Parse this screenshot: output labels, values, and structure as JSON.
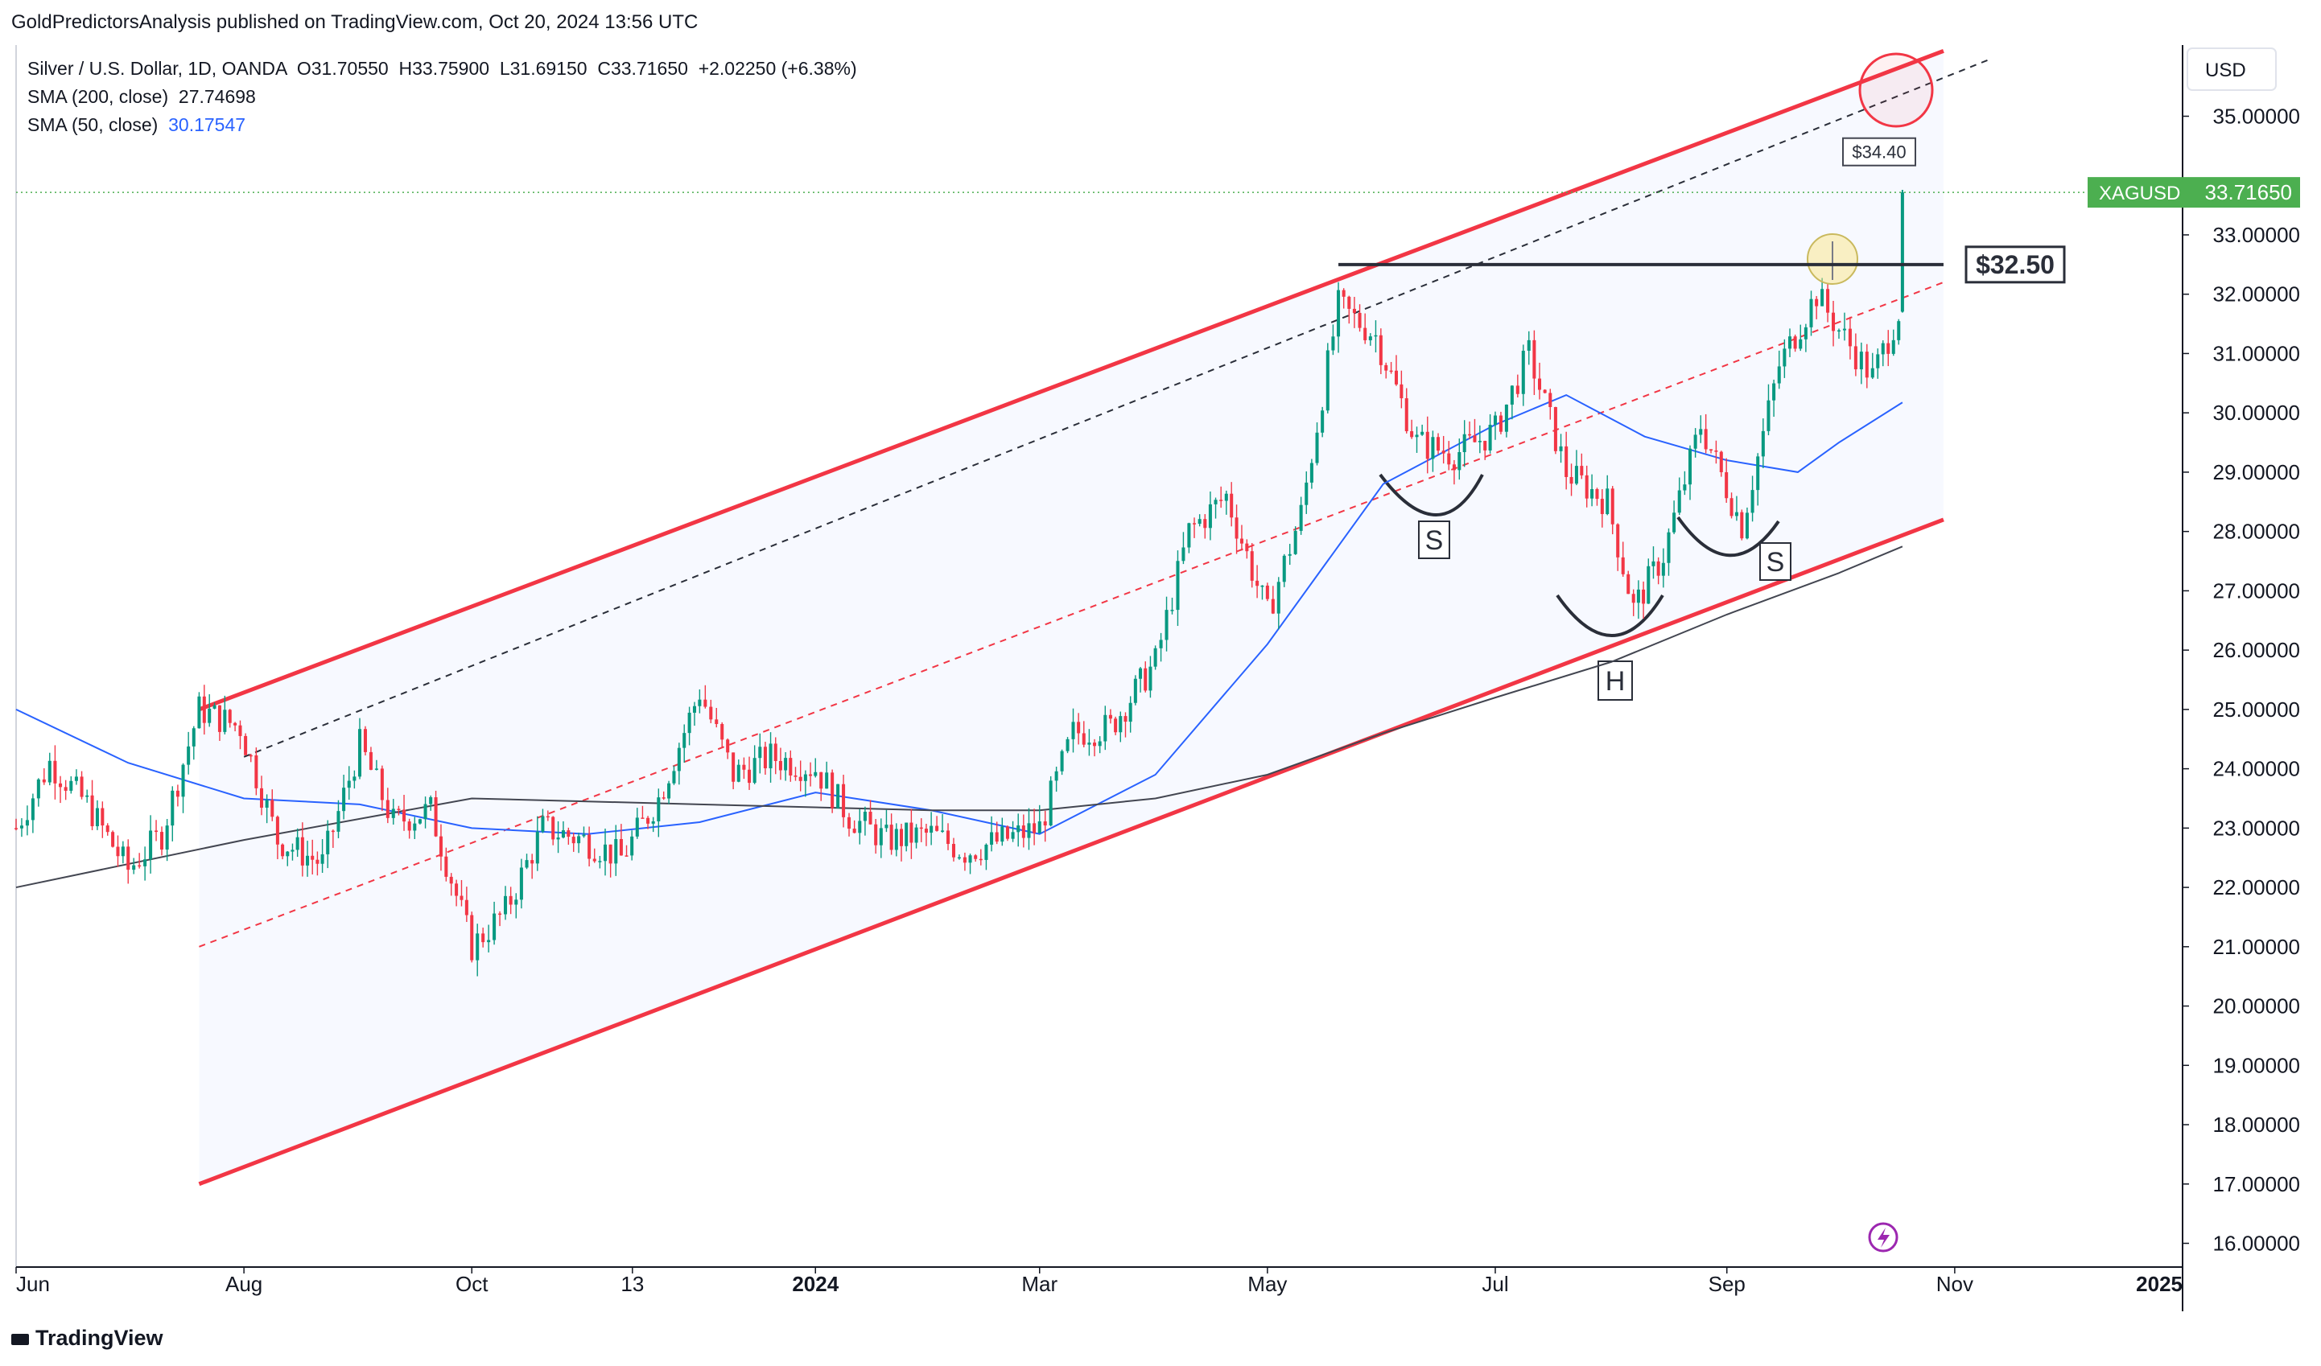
{
  "header": {
    "credit": "GoldPredictorsAnalysis published on TradingView.com, Oct 20, 2024 13:56 UTC"
  },
  "legend": {
    "symbol_line": "Silver / U.S. Dollar, 1D, OANDA",
    "open_label": "O",
    "open": "31.70550",
    "high_label": "H",
    "high": "33.75900",
    "low_label": "L",
    "low": "31.69150",
    "close_label": "C",
    "close": "33.71650",
    "change": "+2.02250 (+6.38%)",
    "sma200_label": "SMA (200, close)",
    "sma200_value": "27.74698",
    "sma50_label": "SMA (50, close)",
    "sma50_value": "30.17547"
  },
  "price_axis": {
    "currency": "USD",
    "ticks": [
      "35.00000",
      "34.00000",
      "33.00000",
      "32.00000",
      "31.00000",
      "30.00000",
      "29.00000",
      "28.00000",
      "27.00000",
      "26.00000",
      "25.00000",
      "24.00000",
      "23.00000",
      "22.00000",
      "21.00000",
      "20.00000",
      "19.00000",
      "18.00000",
      "17.00000",
      "16.00000"
    ],
    "symbol_badge": "XAGUSD",
    "last_price": "33.71650"
  },
  "time_axis": {
    "labels": [
      "Jun",
      "Aug",
      "Oct",
      "13",
      "2024",
      "Mar",
      "May",
      "Jul",
      "Sep",
      "Nov",
      "2025"
    ]
  },
  "annotations": {
    "resistance_label": "$32.50",
    "target_label": "$34.40",
    "pattern_left_shoulder": "S",
    "pattern_head": "H",
    "pattern_right_shoulder": "S"
  },
  "footer": {
    "brand": "TradingView"
  },
  "colors": {
    "up": "#089981",
    "down": "#f23645",
    "channel": "#f23645",
    "sma50": "#2962ff",
    "sma200": "#434651",
    "last_price": "#4caf50"
  },
  "chart_data": {
    "type": "line",
    "title": "Silver / U.S. Dollar, 1D, OANDA",
    "xlabel": "",
    "ylabel": "USD",
    "ylim": [
      15.6,
      36.2
    ],
    "x_range": [
      "2023-06-01",
      "2025-01-01"
    ],
    "legend_placement": "top-left",
    "grid": false,
    "series": [
      {
        "name": "Silver / U.S. Dollar",
        "points": [
          [
            "2023-06-01",
            23.0
          ],
          [
            "2023-06-10",
            24.1
          ],
          [
            "2023-06-20",
            23.4
          ],
          [
            "2023-07-01",
            22.3
          ],
          [
            "2023-07-10",
            22.9
          ],
          [
            "2023-07-20",
            25.0
          ],
          [
            "2023-07-31",
            24.7
          ],
          [
            "2023-08-10",
            22.8
          ],
          [
            "2023-08-22",
            22.4
          ],
          [
            "2023-09-01",
            24.4
          ],
          [
            "2023-09-10",
            23.1
          ],
          [
            "2023-09-20",
            23.3
          ],
          [
            "2023-10-01",
            21.0
          ],
          [
            "2023-10-10",
            21.6
          ],
          [
            "2023-10-20",
            23.0
          ],
          [
            "2023-10-31",
            22.8
          ],
          [
            "2023-11-10",
            22.5
          ],
          [
            "2023-11-20",
            23.5
          ],
          [
            "2023-12-01",
            25.3
          ],
          [
            "2023-12-10",
            23.9
          ],
          [
            "2023-12-20",
            24.2
          ],
          [
            "2024-01-01",
            24.0
          ],
          [
            "2024-01-10",
            23.2
          ],
          [
            "2024-01-20",
            22.8
          ],
          [
            "2024-02-01",
            22.9
          ],
          [
            "2024-02-10",
            22.6
          ],
          [
            "2024-02-20",
            22.8
          ],
          [
            "2024-03-01",
            23.0
          ],
          [
            "2024-03-10",
            24.6
          ],
          [
            "2024-03-20",
            24.7
          ],
          [
            "2024-04-01",
            25.8
          ],
          [
            "2024-04-10",
            28.0
          ],
          [
            "2024-04-20",
            28.6
          ],
          [
            "2024-05-01",
            26.6
          ],
          [
            "2024-05-10",
            28.3
          ],
          [
            "2024-05-20",
            31.8
          ],
          [
            "2024-05-30",
            31.3
          ],
          [
            "2024-06-10",
            29.5
          ],
          [
            "2024-06-20",
            29.3
          ],
          [
            "2024-07-01",
            29.7
          ],
          [
            "2024-07-10",
            31.0
          ],
          [
            "2024-07-20",
            29.0
          ],
          [
            "2024-07-31",
            28.5
          ],
          [
            "2024-08-07",
            26.7
          ],
          [
            "2024-08-15",
            27.6
          ],
          [
            "2024-08-25",
            29.8
          ],
          [
            "2024-09-05",
            28.1
          ],
          [
            "2024-09-15",
            30.8
          ],
          [
            "2024-09-25",
            32.0
          ],
          [
            "2024-10-01",
            31.4
          ],
          [
            "2024-10-10",
            30.6
          ],
          [
            "2024-10-17",
            31.7
          ],
          [
            "2024-10-18",
            33.7165
          ]
        ]
      },
      {
        "name": "SMA (50, close)",
        "points": [
          [
            "2023-06-01",
            25.0
          ],
          [
            "2023-07-01",
            24.1
          ],
          [
            "2023-08-01",
            23.5
          ],
          [
            "2023-09-01",
            23.4
          ],
          [
            "2023-10-01",
            23.0
          ],
          [
            "2023-11-01",
            22.9
          ],
          [
            "2023-12-01",
            23.1
          ],
          [
            "2024-01-01",
            23.6
          ],
          [
            "2024-02-01",
            23.3
          ],
          [
            "2024-03-01",
            22.9
          ],
          [
            "2024-04-01",
            23.9
          ],
          [
            "2024-05-01",
            26.1
          ],
          [
            "2024-06-01",
            28.8
          ],
          [
            "2024-07-01",
            29.8
          ],
          [
            "2024-07-20",
            30.3
          ],
          [
            "2024-08-10",
            29.6
          ],
          [
            "2024-09-01",
            29.2
          ],
          [
            "2024-09-20",
            29.0
          ],
          [
            "2024-10-01",
            29.5
          ],
          [
            "2024-10-18",
            30.17547
          ]
        ]
      },
      {
        "name": "SMA (200, close)",
        "points": [
          [
            "2023-06-01",
            22.0
          ],
          [
            "2023-08-01",
            22.8
          ],
          [
            "2023-10-01",
            23.5
          ],
          [
            "2023-12-01",
            23.4
          ],
          [
            "2024-02-01",
            23.3
          ],
          [
            "2024-03-01",
            23.3
          ],
          [
            "2024-04-01",
            23.5
          ],
          [
            "2024-05-01",
            23.9
          ],
          [
            "2024-06-01",
            24.6
          ],
          [
            "2024-07-01",
            25.2
          ],
          [
            "2024-08-01",
            25.8
          ],
          [
            "2024-09-01",
            26.6
          ],
          [
            "2024-10-01",
            27.3
          ],
          [
            "2024-10-18",
            27.74698
          ]
        ]
      }
    ],
    "channel": {
      "upper": [
        [
          "2023-07-20",
          25.0
        ],
        [
          "2024-10-29",
          36.1
        ]
      ],
      "lower": [
        [
          "2023-07-20",
          17.0
        ],
        [
          "2024-10-29",
          28.2
        ]
      ],
      "mid": [
        [
          "2023-07-20",
          21.0
        ],
        [
          "2024-10-29",
          32.2
        ]
      ]
    },
    "levels": {
      "resistance": 32.5,
      "target": 34.4,
      "last_price": 33.7165
    }
  }
}
